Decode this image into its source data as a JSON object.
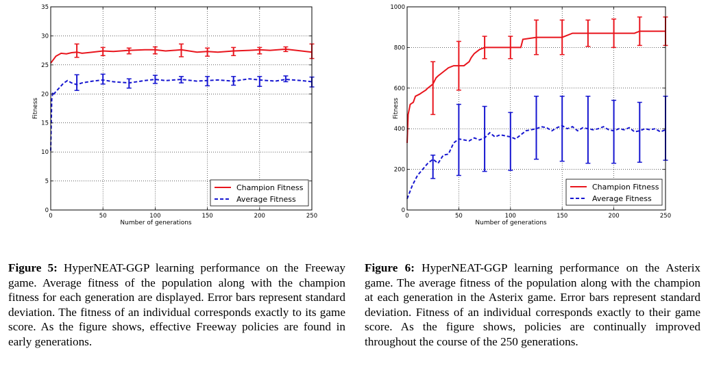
{
  "figures": [
    {
      "id": "fig5",
      "caption_label": "Figure 5:",
      "caption_text": "HyperNEAT-GGP learning performance on the Freeway game. Average fitness of the population along with the champion fitness for each generation are displayed. Error bars represent standard deviation. The fitness of an individual corresponds exactly to its game score. As the figure shows, effective Freeway policies are found in early generations."
    },
    {
      "id": "fig6",
      "caption_label": "Figure 6:",
      "caption_text": "HyperNEAT-GGP learning performance on the Asterix game. The average fitness of the population along with the champion at each generation in the Asterix game. Error bars represent standard deviation. Fitness of an individual corresponds exactly to their game score. As the figure shows, policies are continually improved throughout the course of the 250 generations."
    }
  ],
  "chart_data": [
    {
      "type": "line",
      "title": "",
      "xlabel": "Number of generations",
      "ylabel": "Fitness",
      "xlim": [
        0,
        250
      ],
      "ylim": [
        0,
        35
      ],
      "xticks": [
        0,
        50,
        100,
        150,
        200,
        250
      ],
      "yticks": [
        0,
        5,
        10,
        15,
        20,
        25,
        30,
        35
      ],
      "grid": true,
      "legend_position": "bottom-right",
      "colors": {
        "champion": "#e8141c",
        "average": "#1515d0"
      },
      "series": [
        {
          "name": "Champion Fitness",
          "style": "solid",
          "x": [
            0,
            5,
            10,
            15,
            20,
            25,
            30,
            40,
            50,
            60,
            75,
            90,
            100,
            110,
            125,
            140,
            150,
            160,
            175,
            190,
            200,
            210,
            225,
            240,
            250
          ],
          "y": [
            25.3,
            26.5,
            27.0,
            26.9,
            27.1,
            27.2,
            27.0,
            27.2,
            27.4,
            27.3,
            27.5,
            27.6,
            27.6,
            27.4,
            27.6,
            27.2,
            27.3,
            27.2,
            27.4,
            27.5,
            27.6,
            27.5,
            27.7,
            27.4,
            27.2
          ],
          "errorbars": [
            {
              "x": 25,
              "y": 27.3,
              "low": 26.3,
              "high": 28.6
            },
            {
              "x": 50,
              "y": 27.4,
              "low": 26.6,
              "high": 28.0
            },
            {
              "x": 75,
              "y": 27.4,
              "low": 26.9,
              "high": 27.9
            },
            {
              "x": 100,
              "y": 27.5,
              "low": 26.9,
              "high": 28.1
            },
            {
              "x": 125,
              "y": 27.4,
              "low": 26.4,
              "high": 28.6
            },
            {
              "x": 150,
              "y": 27.2,
              "low": 26.5,
              "high": 27.9
            },
            {
              "x": 175,
              "y": 27.2,
              "low": 26.6,
              "high": 28.0
            },
            {
              "x": 200,
              "y": 27.6,
              "low": 26.9,
              "high": 28.0
            },
            {
              "x": 225,
              "y": 27.8,
              "low": 27.3,
              "high": 28.1
            },
            {
              "x": 250,
              "y": 27.1,
              "low": 26.1,
              "high": 28.6
            }
          ]
        },
        {
          "name": "Average Fitness",
          "style": "dashed",
          "x": [
            0,
            1,
            2,
            3,
            5,
            8,
            12,
            16,
            20,
            25,
            30,
            40,
            50,
            60,
            75,
            90,
            100,
            110,
            125,
            140,
            150,
            160,
            175,
            190,
            200,
            215,
            225,
            240,
            250
          ],
          "y": [
            10.2,
            19.0,
            20.3,
            20.0,
            20.4,
            21.0,
            21.8,
            22.3,
            21.9,
            21.6,
            21.9,
            22.2,
            22.4,
            22.1,
            21.9,
            22.3,
            22.5,
            22.3,
            22.5,
            22.2,
            22.3,
            22.4,
            22.2,
            22.6,
            22.4,
            22.2,
            22.5,
            22.3,
            22.1
          ],
          "errorbars": [
            {
              "x": 25,
              "y": 22.0,
              "low": 20.6,
              "high": 23.3
            },
            {
              "x": 50,
              "y": 22.5,
              "low": 21.7,
              "high": 23.4
            },
            {
              "x": 75,
              "y": 21.9,
              "low": 21.0,
              "high": 22.6
            },
            {
              "x": 100,
              "y": 22.5,
              "low": 21.8,
              "high": 23.2
            },
            {
              "x": 125,
              "y": 22.5,
              "low": 21.9,
              "high": 23.0
            },
            {
              "x": 150,
              "y": 22.3,
              "low": 21.4,
              "high": 23.0
            },
            {
              "x": 175,
              "y": 22.3,
              "low": 21.5,
              "high": 23.0
            },
            {
              "x": 200,
              "y": 22.2,
              "low": 21.3,
              "high": 23.0
            },
            {
              "x": 225,
              "y": 22.6,
              "low": 22.1,
              "high": 23.1
            },
            {
              "x": 250,
              "y": 22.1,
              "low": 21.2,
              "high": 22.9
            }
          ]
        }
      ]
    },
    {
      "type": "line",
      "title": "",
      "xlabel": "Number of generations",
      "ylabel": "Fitness",
      "xlim": [
        0,
        250
      ],
      "ylim": [
        0,
        1000
      ],
      "xticks": [
        0,
        50,
        100,
        150,
        200,
        250
      ],
      "yticks": [
        0,
        200,
        400,
        600,
        800,
        1000
      ],
      "grid": true,
      "legend_position": "bottom-right",
      "colors": {
        "champion": "#e8141c",
        "average": "#1515d0"
      },
      "series": [
        {
          "name": "Champion Fitness",
          "style": "solid",
          "x": [
            0,
            1,
            3,
            6,
            8,
            12,
            15,
            18,
            20,
            25,
            28,
            30,
            35,
            40,
            45,
            50,
            55,
            60,
            62,
            65,
            70,
            75,
            80,
            100,
            110,
            112,
            125,
            150,
            160,
            175,
            200,
            220,
            225,
            250
          ],
          "y": [
            330,
            470,
            520,
            530,
            560,
            570,
            580,
            590,
            600,
            620,
            650,
            660,
            680,
            700,
            710,
            710,
            710,
            730,
            750,
            770,
            790,
            800,
            800,
            800,
            800,
            840,
            850,
            850,
            870,
            870,
            870,
            870,
            880,
            880
          ],
          "errorbars": [
            {
              "x": 25,
              "y": 600,
              "low": 470,
              "high": 730
            },
            {
              "x": 50,
              "y": 710,
              "low": 590,
              "high": 830
            },
            {
              "x": 75,
              "y": 800,
              "low": 745,
              "high": 855
            },
            {
              "x": 100,
              "y": 800,
              "low": 745,
              "high": 855
            },
            {
              "x": 125,
              "y": 850,
              "low": 765,
              "high": 935
            },
            {
              "x": 150,
              "y": 850,
              "low": 765,
              "high": 935
            },
            {
              "x": 175,
              "y": 870,
              "low": 805,
              "high": 935
            },
            {
              "x": 200,
              "y": 870,
              "low": 800,
              "high": 940
            },
            {
              "x": 225,
              "y": 880,
              "low": 810,
              "high": 950
            },
            {
              "x": 250,
              "y": 880,
              "low": 810,
              "high": 950
            }
          ]
        },
        {
          "name": "Average Fitness",
          "style": "dashed",
          "x": [
            0,
            5,
            10,
            15,
            20,
            25,
            30,
            35,
            40,
            45,
            50,
            55,
            60,
            65,
            70,
            75,
            80,
            85,
            90,
            95,
            100,
            105,
            110,
            115,
            120,
            125,
            130,
            135,
            140,
            145,
            150,
            155,
            160,
            165,
            170,
            175,
            180,
            185,
            190,
            195,
            200,
            205,
            210,
            215,
            220,
            225,
            230,
            235,
            240,
            245,
            250
          ],
          "y": [
            55,
            120,
            170,
            200,
            230,
            250,
            230,
            270,
            275,
            330,
            350,
            345,
            340,
            355,
            345,
            355,
            380,
            360,
            370,
            365,
            360,
            350,
            370,
            390,
            395,
            400,
            410,
            405,
            390,
            405,
            415,
            400,
            410,
            390,
            405,
            400,
            395,
            400,
            410,
            395,
            390,
            400,
            395,
            405,
            385,
            390,
            400,
            395,
            400,
            385,
            395
          ],
          "errorbars": [
            {
              "x": 25,
              "y": 215,
              "low": 155,
              "high": 270
            },
            {
              "x": 50,
              "y": 350,
              "low": 170,
              "high": 520
            },
            {
              "x": 75,
              "y": 355,
              "low": 190,
              "high": 510
            },
            {
              "x": 100,
              "y": 340,
              "low": 195,
              "high": 480
            },
            {
              "x": 125,
              "y": 405,
              "low": 250,
              "high": 560
            },
            {
              "x": 150,
              "y": 400,
              "low": 240,
              "high": 560
            },
            {
              "x": 175,
              "y": 395,
              "low": 230,
              "high": 560
            },
            {
              "x": 200,
              "y": 385,
              "low": 230,
              "high": 540
            },
            {
              "x": 225,
              "y": 385,
              "low": 235,
              "high": 530
            },
            {
              "x": 250,
              "y": 400,
              "low": 245,
              "high": 560
            }
          ]
        }
      ]
    }
  ]
}
